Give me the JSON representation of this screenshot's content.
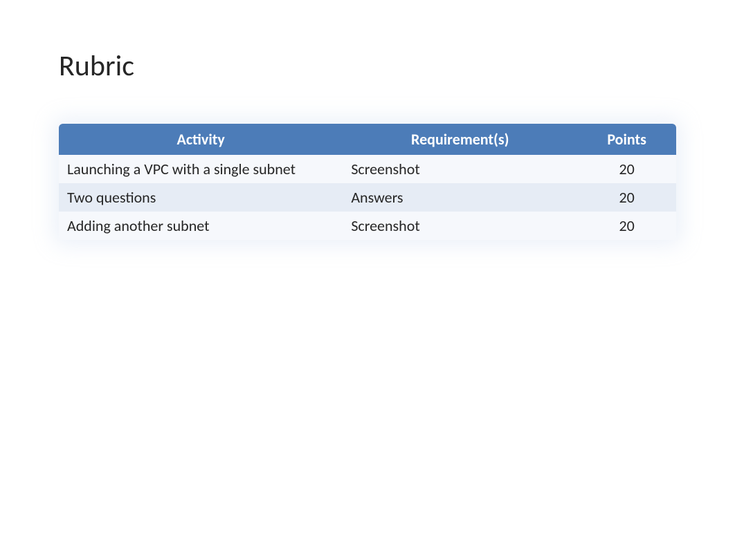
{
  "title": "Rubric",
  "table": {
    "type": "table",
    "header_bg": "#4c7cb8",
    "header_text_color": "#ffffff",
    "header_fontsize": 22,
    "header_fontweight": "bold",
    "body_fontsize": 22,
    "body_text_color": "#262626",
    "row_odd_bg": "#f6f8fc",
    "row_even_bg": "#e6ecf5",
    "shadow_color": "rgba(180,200,230,0.25)",
    "columns": [
      {
        "label": "Activity",
        "width_pct": 46,
        "align": "center"
      },
      {
        "label": "Requirement(s)",
        "width_pct": 38,
        "align": "center"
      },
      {
        "label": "Points",
        "width_pct": 16,
        "align": "center"
      }
    ],
    "rows": [
      {
        "activity": "Launching a VPC with a single subnet",
        "requirement": "Screenshot",
        "points": "20"
      },
      {
        "activity": "Two questions",
        "requirement": "Answers",
        "points": "20"
      },
      {
        "activity": "Adding another subnet",
        "requirement": "Screenshot",
        "points": "20"
      }
    ]
  }
}
